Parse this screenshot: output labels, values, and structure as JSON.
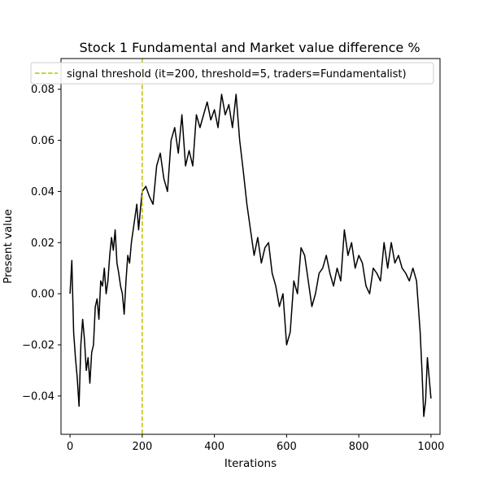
{
  "chart_data": {
    "type": "line",
    "title": "Stock 1 Fundamental and Market value difference %",
    "xlabel": "Iterations",
    "ylabel": "Present value",
    "xlim": [
      -25,
      1025
    ],
    "ylim": [
      -0.055,
      0.092
    ],
    "xticks": [
      0,
      200,
      400,
      600,
      800,
      1000
    ],
    "xtick_labels": [
      "0",
      "200",
      "400",
      "600",
      "800",
      "1000"
    ],
    "yticks": [
      -0.04,
      -0.02,
      0.0,
      0.02,
      0.04,
      0.06,
      0.08
    ],
    "ytick_labels": [
      "−0.04",
      "−0.02",
      "0.00",
      "0.02",
      "0.04",
      "0.06",
      "0.08"
    ],
    "grid": false,
    "legend_position": "top-center",
    "series": [
      {
        "name": "",
        "color": "#000000",
        "x": [
          0,
          5,
          10,
          15,
          20,
          25,
          30,
          35,
          40,
          45,
          50,
          55,
          60,
          65,
          70,
          75,
          80,
          85,
          90,
          95,
          100,
          105,
          110,
          115,
          120,
          125,
          130,
          135,
          140,
          145,
          150,
          155,
          160,
          165,
          170,
          175,
          180,
          185,
          190,
          195,
          200,
          210,
          220,
          230,
          240,
          250,
          260,
          270,
          280,
          290,
          300,
          310,
          320,
          330,
          340,
          350,
          360,
          370,
          380,
          390,
          400,
          410,
          420,
          430,
          440,
          450,
          460,
          470,
          480,
          490,
          500,
          510,
          520,
          530,
          540,
          550,
          560,
          570,
          580,
          590,
          600,
          610,
          620,
          630,
          640,
          650,
          660,
          670,
          680,
          690,
          700,
          710,
          720,
          730,
          740,
          750,
          760,
          770,
          780,
          790,
          800,
          810,
          820,
          830,
          840,
          850,
          860,
          870,
          880,
          890,
          900,
          910,
          920,
          930,
          940,
          950,
          960,
          965,
          970,
          975,
          980,
          985,
          990,
          995,
          1000
        ],
        "y": [
          0.0,
          0.013,
          -0.015,
          -0.025,
          -0.033,
          -0.044,
          -0.02,
          -0.01,
          -0.018,
          -0.03,
          -0.025,
          -0.035,
          -0.023,
          -0.02,
          -0.005,
          -0.002,
          -0.01,
          0.005,
          0.003,
          0.01,
          0.0,
          0.005,
          0.015,
          0.022,
          0.017,
          0.025,
          0.012,
          0.008,
          0.003,
          0.0,
          -0.008,
          0.005,
          0.015,
          0.012,
          0.02,
          0.025,
          0.03,
          0.035,
          0.025,
          0.033,
          0.04,
          0.042,
          0.038,
          0.035,
          0.05,
          0.055,
          0.045,
          0.04,
          0.06,
          0.065,
          0.055,
          0.07,
          0.05,
          0.056,
          0.05,
          0.07,
          0.065,
          0.07,
          0.075,
          0.068,
          0.072,
          0.065,
          0.078,
          0.07,
          0.074,
          0.065,
          0.078,
          0.06,
          0.048,
          0.035,
          0.025,
          0.015,
          0.022,
          0.012,
          0.018,
          0.02,
          0.008,
          0.003,
          -0.005,
          0.0,
          -0.02,
          -0.015,
          0.005,
          0.0,
          0.018,
          0.015,
          0.005,
          -0.005,
          0.0,
          0.008,
          0.01,
          0.015,
          0.008,
          0.003,
          0.01,
          0.005,
          0.025,
          0.015,
          0.02,
          0.01,
          0.015,
          0.012,
          0.003,
          0.0,
          0.01,
          0.008,
          0.005,
          0.02,
          0.01,
          0.02,
          0.012,
          0.015,
          0.01,
          0.008,
          0.005,
          0.01,
          0.005,
          -0.005,
          -0.015,
          -0.03,
          -0.048,
          -0.042,
          -0.025,
          -0.033,
          -0.041
        ]
      }
    ],
    "vline": {
      "x": 200,
      "color": "#bfbf00",
      "style": "dashed",
      "label": "signal threshold (it=200, threshold=5, traders=Fundamentalist)"
    }
  }
}
